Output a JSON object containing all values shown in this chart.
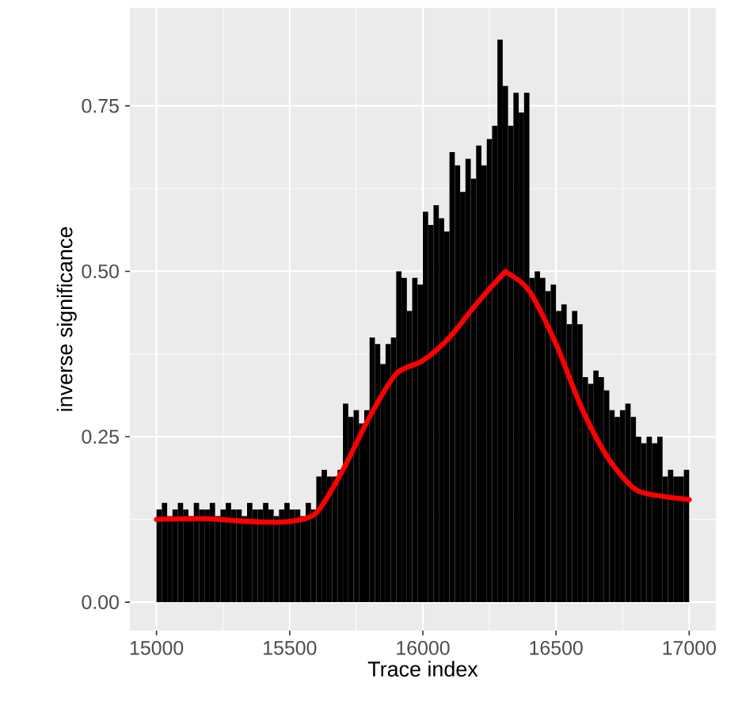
{
  "chart_data": {
    "type": "bar",
    "xlabel": "Trace index",
    "ylabel": "inverse significance",
    "xlim": [
      14900,
      17100
    ],
    "ylim": [
      -0.043,
      0.898
    ],
    "xticks": [
      15000,
      15500,
      16000,
      16500,
      17000
    ],
    "yticks": [
      {
        "value": 0,
        "label": "0.00"
      },
      {
        "value": 0.25,
        "label": "0.25"
      },
      {
        "value": 0.5,
        "label": "0.50"
      },
      {
        "value": 0.75,
        "label": "0.75"
      }
    ],
    "grid": true,
    "series": [
      {
        "color": "#000000",
        "x": [
          15010,
          15030,
          15050,
          15070,
          15090,
          15110,
          15130,
          15150,
          15170,
          15190,
          15210,
          15230,
          15250,
          15270,
          15290,
          15310,
          15330,
          15350,
          15370,
          15390,
          15410,
          15430,
          15450,
          15470,
          15490,
          15510,
          15530,
          15550,
          15570,
          15590,
          15610,
          15630,
          15650,
          15670,
          15690,
          15710,
          15730,
          15750,
          15770,
          15790,
          15810,
          15830,
          15850,
          15870,
          15890,
          15910,
          15930,
          15950,
          15970,
          15990,
          16010,
          16030,
          16050,
          16070,
          16090,
          16110,
          16130,
          16150,
          16170,
          16190,
          16210,
          16230,
          16250,
          16270,
          16290,
          16310,
          16330,
          16350,
          16370,
          16390,
          16410,
          16430,
          16450,
          16470,
          16490,
          16510,
          16530,
          16550,
          16570,
          16590,
          16610,
          16630,
          16650,
          16670,
          16690,
          16710,
          16730,
          16750,
          16770,
          16790,
          16810,
          16830,
          16850,
          16870,
          16890,
          16910,
          16930,
          16950,
          16970,
          16990
        ],
        "values": [
          0.14,
          0.15,
          0.13,
          0.14,
          0.15,
          0.14,
          0.13,
          0.15,
          0.14,
          0.14,
          0.15,
          0.13,
          0.14,
          0.15,
          0.14,
          0.14,
          0.13,
          0.15,
          0.14,
          0.14,
          0.15,
          0.14,
          0.13,
          0.14,
          0.15,
          0.14,
          0.14,
          0.13,
          0.15,
          0.14,
          0.19,
          0.2,
          0.19,
          0.19,
          0.2,
          0.3,
          0.28,
          0.29,
          0.27,
          0.29,
          0.4,
          0.39,
          0.36,
          0.39,
          0.4,
          0.5,
          0.49,
          0.44,
          0.49,
          0.48,
          0.59,
          0.57,
          0.6,
          0.58,
          0.56,
          0.68,
          0.66,
          0.62,
          0.67,
          0.64,
          0.69,
          0.66,
          0.7,
          0.72,
          0.85,
          0.78,
          0.72,
          0.77,
          0.74,
          0.77,
          0.49,
          0.5,
          0.49,
          0.47,
          0.48,
          0.44,
          0.45,
          0.42,
          0.44,
          0.42,
          0.34,
          0.33,
          0.35,
          0.34,
          0.32,
          0.29,
          0.28,
          0.29,
          0.3,
          0.28,
          0.25,
          0.24,
          0.25,
          0.24,
          0.25,
          0.19,
          0.2,
          0.19,
          0.19,
          0.2
        ]
      },
      {
        "type": "line",
        "color": "#ff0000",
        "x": [
          15000,
          15100,
          15200,
          15300,
          15400,
          15500,
          15600,
          15700,
          15800,
          15900,
          16000,
          16100,
          16200,
          16300,
          16320,
          16400,
          16500,
          16600,
          16700,
          16800,
          16900,
          17000
        ],
        "values": [
          0.125,
          0.126,
          0.126,
          0.123,
          0.121,
          0.122,
          0.135,
          0.2,
          0.28,
          0.345,
          0.365,
          0.4,
          0.45,
          0.495,
          0.497,
          0.47,
          0.39,
          0.29,
          0.215,
          0.17,
          0.16,
          0.155
        ]
      }
    ]
  }
}
